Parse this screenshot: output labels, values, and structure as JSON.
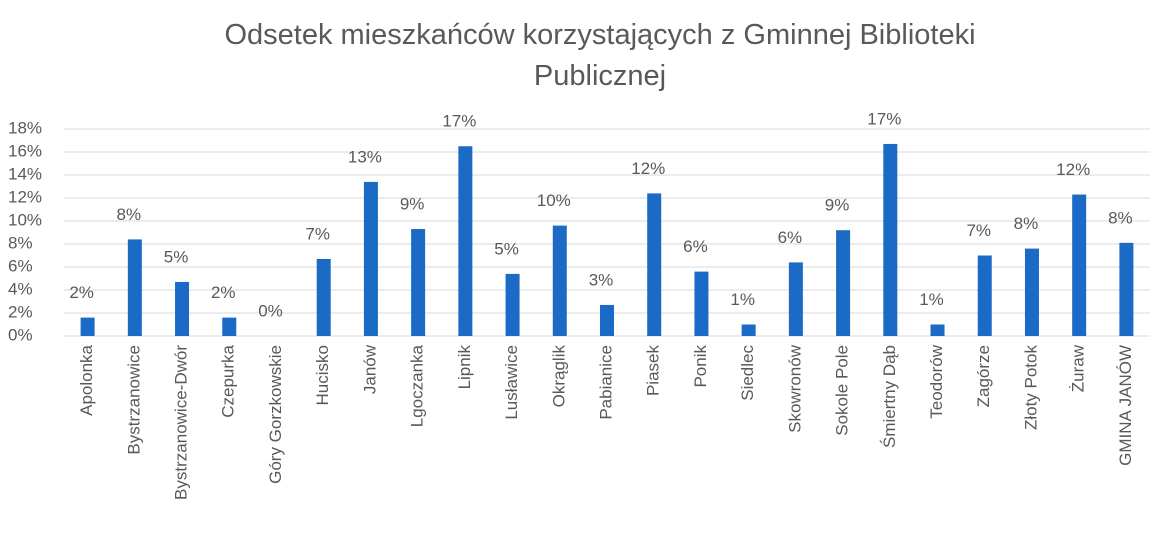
{
  "chart_data": {
    "type": "bar",
    "title": "Odsetek mieszkańców korzystających z Gminnej Biblioteki Publicznej",
    "categories": [
      "Apolonka",
      "Bystrzanowice",
      "Bystrzanowice-Dwór",
      "Czepurka",
      "Góry Gorzkowskie",
      "Hucisko",
      "Janów",
      "Lgoczanka",
      "Lipnik",
      "Lusławice",
      "Okrąglik",
      "Pabianice",
      "Piasek",
      "Ponik",
      "Siedlec",
      "Skowronów",
      "Sokole Pole",
      "Śmiertny Dąb",
      "Teodorów",
      "Zagórze",
      "Złoty Potok",
      "Żuraw",
      "GMINA JANÓW"
    ],
    "values": [
      1.6,
      8.4,
      4.7,
      1.6,
      0,
      6.7,
      13.4,
      9.3,
      16.5,
      5.4,
      9.6,
      2.7,
      12.4,
      5.6,
      1.0,
      6.4,
      9.2,
      16.7,
      1.0,
      7.0,
      7.6,
      12.3,
      8.1
    ],
    "value_labels": [
      "2%",
      "8%",
      "5%",
      "2%",
      "0%",
      "7%",
      "13%",
      "9%",
      "17%",
      "5%",
      "10%",
      "3%",
      "12%",
      "6%",
      "1%",
      "6%",
      "9%",
      "17%",
      "1%",
      "7%",
      "8%",
      "12%",
      "8%"
    ],
    "color": "#1a6ac6",
    "ylim": [
      0,
      18
    ],
    "yticks": [
      {
        "value": 0,
        "label": "0%"
      },
      {
        "value": 2,
        "label": "2%"
      },
      {
        "value": 4,
        "label": "4%"
      },
      {
        "value": 6,
        "label": "6%"
      },
      {
        "value": 8,
        "label": "8%"
      },
      {
        "value": 10,
        "label": "10%"
      },
      {
        "value": 12,
        "label": "12%"
      },
      {
        "value": 14,
        "label": "14%"
      },
      {
        "value": 16,
        "label": "16%"
      },
      {
        "value": 18,
        "label": "18%"
      }
    ],
    "grid": true
  }
}
